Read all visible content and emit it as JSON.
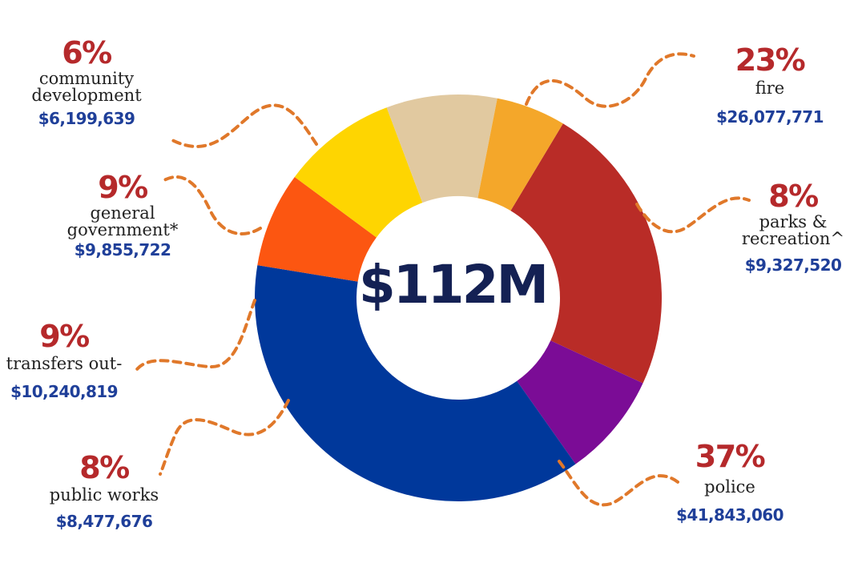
{
  "chart_data": {
    "type": "pie",
    "center_label": "$112M",
    "slices": [
      {
        "category": "fire",
        "category_lines": [
          "fire"
        ],
        "percent_label": "23%",
        "amount_label": "$26,077,771",
        "value": 26077771,
        "color": "#b92c27"
      },
      {
        "category": "parks & recreation^",
        "category_lines": [
          "parks &",
          "recreation^"
        ],
        "percent_label": "8%",
        "amount_label": "$9,327,520",
        "value": 9327520,
        "color": "#7b0c96"
      },
      {
        "category": "police",
        "category_lines": [
          "police"
        ],
        "percent_label": "37%",
        "amount_label": "$41,843,060",
        "value": 41843060,
        "color": "#00389b"
      },
      {
        "category": "public works",
        "category_lines": [
          "public works"
        ],
        "percent_label": "8%",
        "amount_label": "$8,477,676",
        "value": 8477676,
        "color": "#fc5611"
      },
      {
        "category": "transfers out-",
        "category_lines": [
          "transfers out-"
        ],
        "percent_label": "9%",
        "amount_label": "$10,240,819",
        "value": 10240819,
        "color": "#fed501"
      },
      {
        "category": "general government*",
        "category_lines": [
          "general",
          "government*"
        ],
        "percent_label": "9%",
        "amount_label": "$9,855,722",
        "value": 9855722,
        "color": "#e1c9a0"
      },
      {
        "category": "community development",
        "category_lines": [
          "community",
          "development"
        ],
        "percent_label": "6%",
        "amount_label": "$6,199,639",
        "value": 6199639,
        "color": "#f4a72a"
      }
    ]
  },
  "colors": {
    "percent_text": "#b5292b",
    "amount_text": "#1f3f99",
    "category_text": "#222222",
    "total_text": "#142154",
    "leader_line": "#e0782a"
  }
}
